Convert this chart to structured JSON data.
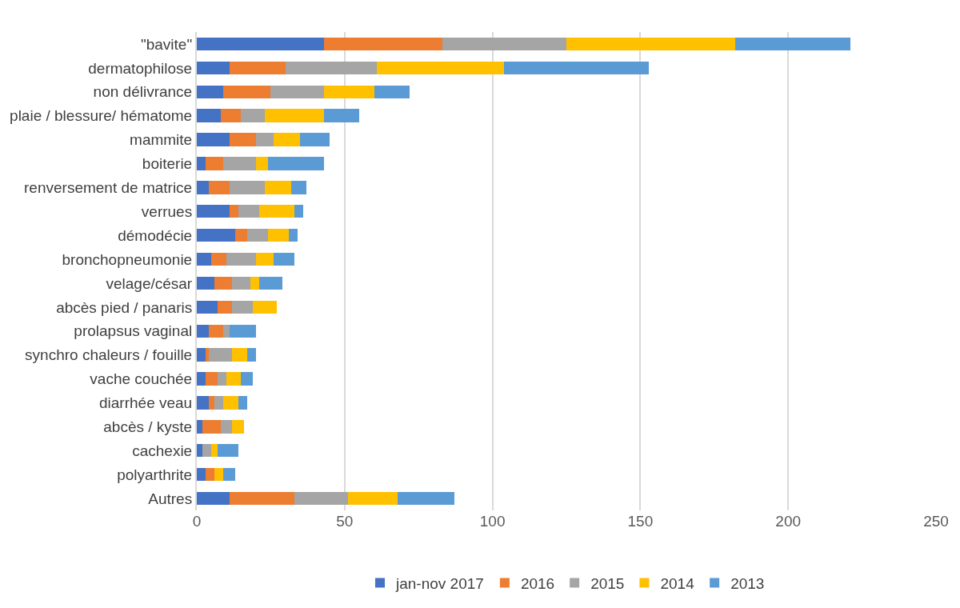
{
  "chart_data": {
    "type": "bar",
    "orientation": "horizontal",
    "stacked": true,
    "grid": "x",
    "legend": "bottom",
    "categories": [
      "\"bavite\"",
      "dermatophilose",
      "non délivrance",
      "plaie / blessure/ hématome",
      "mammite",
      "boiterie",
      "renversement de matrice",
      "verrues",
      "démodécie",
      "bronchopneumonie",
      "velage/césar",
      "abcès pied / panaris",
      "prolapsus vaginal",
      "synchro chaleurs / fouille",
      "vache couchée",
      "diarrhée veau",
      "abcès / kyste",
      "cachexie",
      "polyarthrite",
      "Autres"
    ],
    "series": [
      {
        "name": "jan-nov 2017",
        "color": "#4472c4",
        "values": [
          43,
          11,
          9,
          8,
          11,
          3,
          4,
          11,
          13,
          5,
          6,
          7,
          4,
          3,
          3,
          4,
          2,
          2,
          3,
          11
        ]
      },
      {
        "name": "2016",
        "color": "#ed7d31",
        "values": [
          40,
          19,
          16,
          7,
          9,
          6,
          7,
          3,
          4,
          5,
          6,
          5,
          5,
          1,
          4,
          2,
          6,
          0,
          3,
          22
        ]
      },
      {
        "name": "2015",
        "color": "#a5a5a5",
        "values": [
          42,
          31,
          18,
          8,
          6,
          11,
          12,
          7,
          7,
          10,
          6,
          7,
          2,
          8,
          3,
          3,
          4,
          3,
          0,
          18
        ]
      },
      {
        "name": "2014",
        "color": "#ffc000",
        "values": [
          57,
          43,
          17,
          20,
          9,
          4,
          9,
          12,
          7,
          6,
          3,
          8,
          0,
          5,
          5,
          5,
          4,
          2,
          3,
          17
        ]
      },
      {
        "name": "2013",
        "color": "#5b9bd5",
        "values": [
          39,
          49,
          12,
          12,
          10,
          19,
          5,
          3,
          3,
          7,
          8,
          0,
          9,
          3,
          4,
          3,
          0,
          7,
          4,
          19
        ]
      }
    ],
    "xlim": [
      0,
      250
    ],
    "xticks": [
      0,
      50,
      100,
      150,
      200,
      250
    ]
  }
}
